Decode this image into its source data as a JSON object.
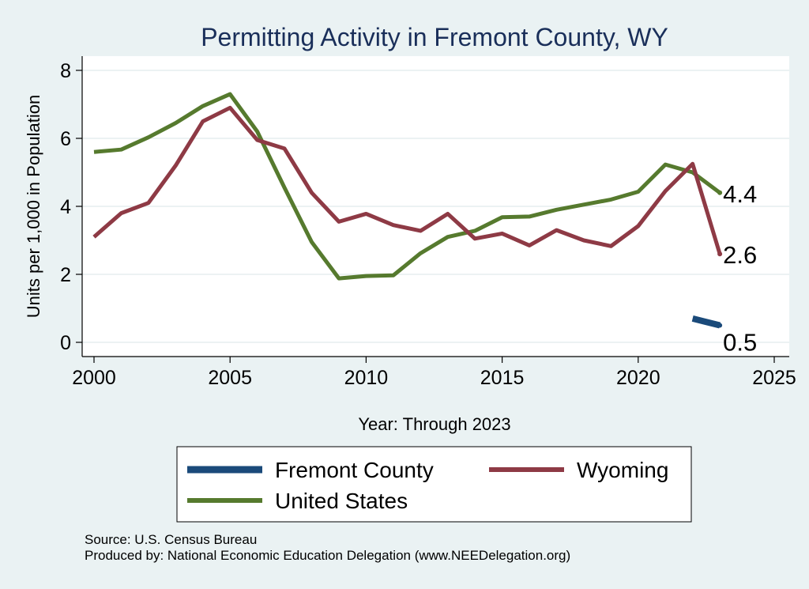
{
  "chart_data": {
    "type": "line",
    "title": "Permitting Activity in Fremont County, WY",
    "xlabel": "Year: Through 2023",
    "ylabel": "Units per 1,000 in Population",
    "xlim": [
      2000,
      2025
    ],
    "ylim": [
      0,
      8
    ],
    "x_ticks": [
      2000,
      2005,
      2010,
      2015,
      2020,
      2025
    ],
    "y_ticks": [
      0,
      2,
      4,
      6,
      8
    ],
    "grid": true,
    "legend_position": "bottom",
    "series": [
      {
        "name": "Fremont County",
        "color": "#1a4a7a",
        "x": [
          2022,
          2023
        ],
        "values": [
          0.7,
          0.5
        ]
      },
      {
        "name": "Wyoming",
        "color": "#8e3a45",
        "x": [
          2000,
          2001,
          2002,
          2003,
          2004,
          2005,
          2006,
          2007,
          2008,
          2009,
          2010,
          2011,
          2012,
          2013,
          2014,
          2015,
          2016,
          2017,
          2018,
          2019,
          2020,
          2021,
          2022,
          2023
        ],
        "values": [
          3.1,
          3.8,
          4.1,
          5.2,
          6.5,
          6.9,
          5.95,
          5.7,
          4.4,
          3.55,
          3.78,
          3.45,
          3.28,
          3.78,
          3.05,
          3.2,
          2.85,
          3.3,
          3.0,
          2.83,
          3.42,
          4.45,
          5.25,
          2.6
        ]
      },
      {
        "name": "United States",
        "color": "#567a2e",
        "x": [
          2000,
          2001,
          2002,
          2003,
          2004,
          2005,
          2006,
          2007,
          2008,
          2009,
          2010,
          2011,
          2012,
          2013,
          2014,
          2015,
          2016,
          2017,
          2018,
          2019,
          2020,
          2021,
          2022,
          2023
        ],
        "values": [
          5.6,
          5.67,
          6.03,
          6.45,
          6.95,
          7.3,
          6.2,
          4.55,
          2.95,
          1.88,
          1.95,
          1.97,
          2.62,
          3.1,
          3.28,
          3.68,
          3.7,
          3.9,
          4.05,
          4.2,
          4.43,
          5.23,
          5.0,
          4.4
        ]
      }
    ],
    "end_labels": [
      {
        "series": "United States",
        "text": "4.4"
      },
      {
        "series": "Wyoming",
        "text": "2.6"
      },
      {
        "series": "Fremont County",
        "text": "0.5"
      }
    ]
  },
  "source_lines": [
    "Source: U.S. Census Bureau",
    "Produced by: National Economic Education Delegation (www.NEEDelegation.org)"
  ]
}
